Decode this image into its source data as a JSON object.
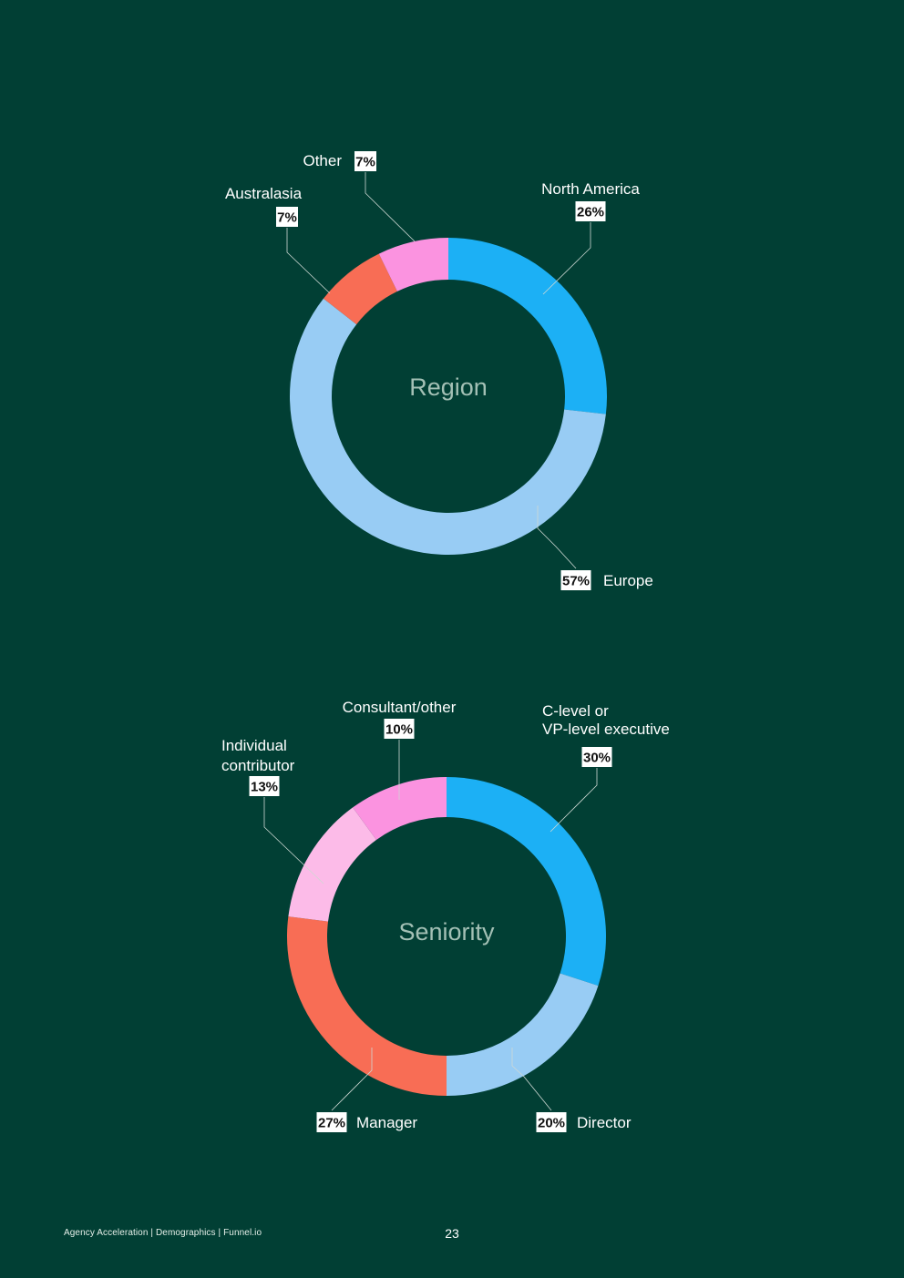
{
  "footer": {
    "left_text": "Agency  Acceleration | Demographics | Funnel.io",
    "page_number": "23"
  },
  "chart_data": [
    {
      "type": "pie",
      "variant": "donut",
      "center_label": "Region",
      "slices": [
        {
          "label": "North America",
          "value": 26,
          "display": "26%",
          "color": "#1cb0f5"
        },
        {
          "label": "Europe",
          "value": 57,
          "display": "57%",
          "color": "#98ccf4"
        },
        {
          "label": "Australasia",
          "value": 7,
          "display": "7%",
          "color": "#f86d55"
        },
        {
          "label": "Other",
          "value": 7,
          "display": "7%",
          "color": "#fb93e0"
        }
      ]
    },
    {
      "type": "pie",
      "variant": "donut",
      "center_label": "Seniority",
      "slices": [
        {
          "label": "C-level or VP-level executive",
          "label_lines": [
            "C-level or",
            "VP-level executive"
          ],
          "value": 30,
          "display": "30%",
          "color": "#1cb0f5"
        },
        {
          "label": "Director",
          "value": 20,
          "display": "20%",
          "color": "#98ccf4"
        },
        {
          "label": "Manager",
          "value": 27,
          "display": "27%",
          "color": "#f86d55"
        },
        {
          "label": "Individual contributor",
          "label_lines": [
            "Individual",
            "contributor"
          ],
          "value": 13,
          "display": "13%",
          "color": "#fcbbe8"
        },
        {
          "label": "Consultant/other",
          "value": 10,
          "display": "10%",
          "color": "#fb93e0"
        }
      ]
    }
  ]
}
